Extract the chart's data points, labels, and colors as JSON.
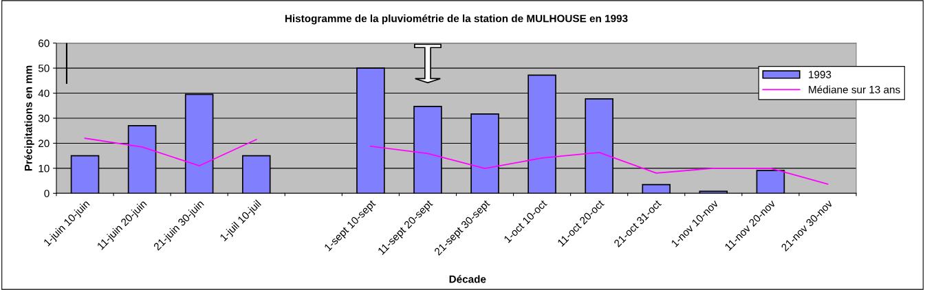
{
  "chart_data": {
    "type": "bar",
    "title": "Histogramme de la pluviométrie de la station de MULHOUSE en 1993",
    "xlabel": "Décade",
    "ylabel": "Précipitations en mm",
    "categories": [
      "1-juin 10-juin",
      "11-juin 20-juin",
      "21-juin 30-juin",
      "1-juil 10-juil",
      null,
      "1-sept 10-sept",
      "11-sept 20-sept",
      "21-sept 30-sept",
      "1-oct 10-oct",
      "11-oct 20-oct",
      "21-oct 31-oct",
      "1-nov 10-nov",
      "11-nov 20-nov",
      "21-nov 30-nov"
    ],
    "series": [
      {
        "name": "1993",
        "color": "#8080ff",
        "values": [
          15,
          27,
          39.5,
          15,
          null,
          50,
          34.7,
          31.7,
          47.2,
          37.7,
          3.5,
          0.8,
          9.1,
          null
        ]
      },
      {
        "name": "Médiane sur 13 ans",
        "type": "line",
        "color": "#ff00ff",
        "values": [
          22,
          18.5,
          11,
          21.5,
          null,
          18.8,
          15.9,
          9.9,
          14.1,
          16.3,
          8.1,
          10,
          10,
          3.7
        ]
      }
    ],
    "ylim": [
      0,
      60
    ],
    "yticks": [
      0,
      10,
      20,
      30,
      40,
      50,
      60
    ],
    "grid": "y",
    "legend": "right",
    "marker": "none"
  }
}
